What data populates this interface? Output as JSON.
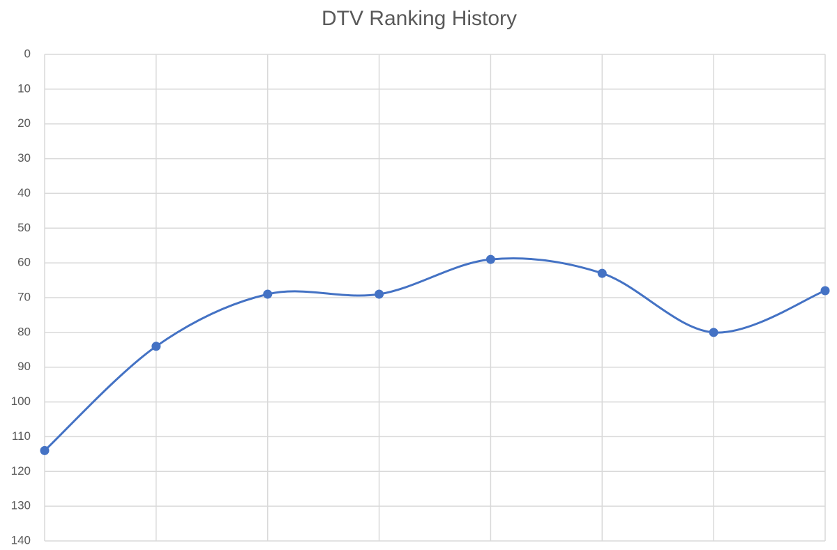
{
  "chart_data": {
    "type": "line",
    "title": "DTV Ranking History",
    "categories": [
      null,
      null,
      null,
      null,
      null,
      null,
      null,
      null
    ],
    "values": [
      114,
      84,
      69,
      69,
      59,
      63,
      80,
      68
    ],
    "color": "#4472c4",
    "ylim": [
      0,
      140
    ],
    "yticks": [
      0,
      10,
      20,
      30,
      40,
      50,
      60,
      70,
      80,
      90,
      100,
      110,
      120,
      130,
      140
    ],
    "reverse_y": true,
    "grid": true,
    "smooth": true
  }
}
